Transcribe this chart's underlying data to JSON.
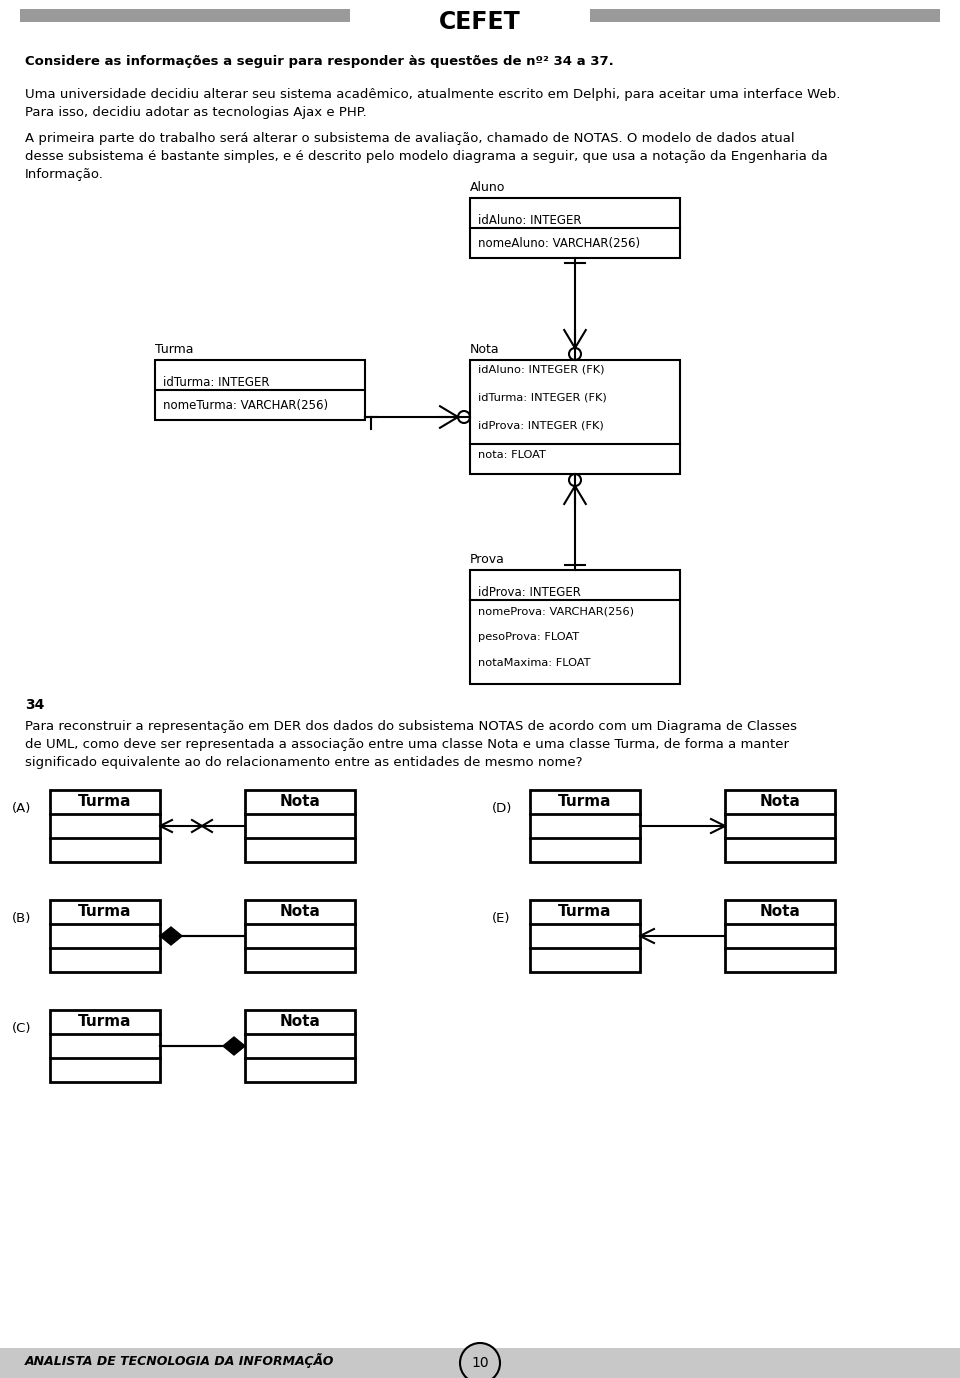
{
  "title": "CEFET",
  "bg_color": "#ffffff",
  "bold_text": "Considere as informações a seguir para responder às questões de nº² 34 a 37.",
  "paragraph1": "Uma universidade decidiu alterar seu sistema acadêmico, atualmente escrito em Delphi, para aceitar uma interface Web.\nPara isso, decidiu adotar as tecnologias Ajax e PHP.",
  "paragraph2_line1": "A primeira parte do trabalho será alterar o subsistema de avaliação, chamado de NOTAS. O modelo de dados atual",
  "paragraph2_line2": "desse subsistema é bastante simples, e é descrito pelo modelo diagrama a seguir, que usa a notação da Engenharia da",
  "paragraph2_line3": "Informação.",
  "question_number": "34",
  "question_line1": "Para reconstruir a representação em DER dos dados do subsistema NOTAS de acordo com um Diagrama de Classes",
  "question_line2": "de UML, como deve ser representada a associação entre uma classe Nota e uma classe Turma, de forma a manter",
  "question_line3": "significado equivalente ao do relacionamento entre as entidades de mesmo nome?",
  "footer_text": "ANALISTA DE TECNOLOGIA DA INFORMAÇÃO",
  "page_number": "10",
  "header_bar_color": "#9a9a9a",
  "footer_bar_color": "#c8c8c8"
}
